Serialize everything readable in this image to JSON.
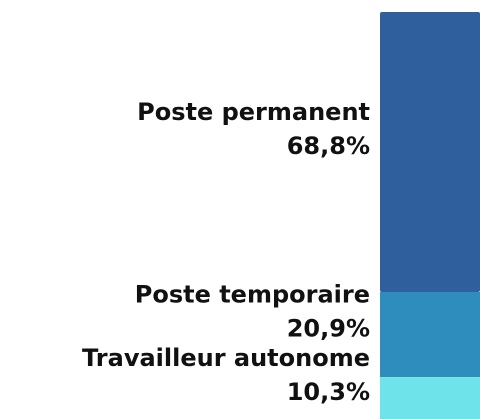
{
  "chart_data": {
    "type": "stacked-bar",
    "series": [
      {
        "name": "Poste permanent",
        "color": "#2f5f9d",
        "values": [
          68.8
        ],
        "value_labels": [
          "68,8%"
        ]
      },
      {
        "name": "Poste temporaire",
        "color": "#2e8dbd",
        "values": [
          20.9
        ],
        "value_labels": [
          "20,9%"
        ]
      },
      {
        "name": "Travailleur autonome",
        "color": "#6ee3e9",
        "values": [
          10.3
        ],
        "value_labels": [
          "10,3%"
        ]
      }
    ]
  }
}
